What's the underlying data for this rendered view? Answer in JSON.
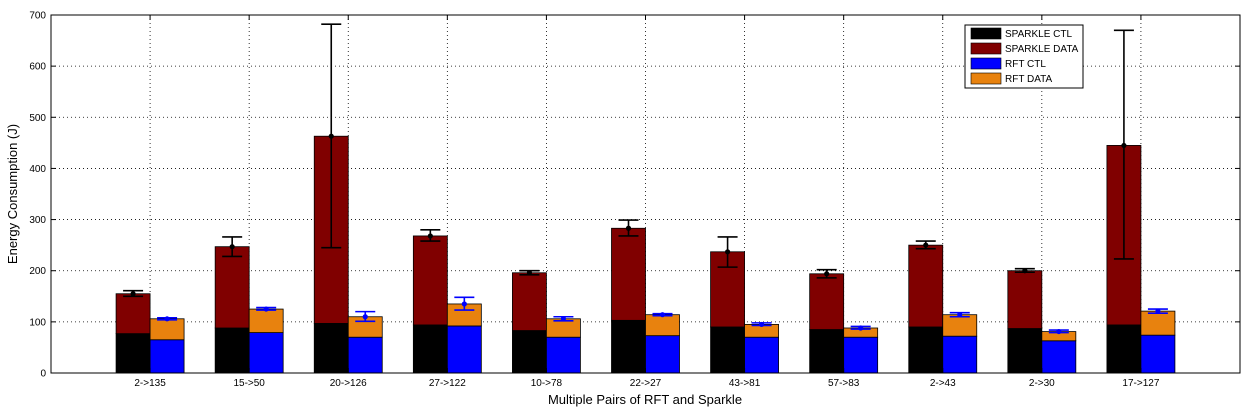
{
  "chart_data": {
    "type": "bar",
    "subtype": "grouped-stacked-with-error-bars",
    "xlabel": "Multiple Pairs of RFT and Sparkle",
    "ylabel": "Energy Consumption (J)",
    "ylim": [
      0,
      700
    ],
    "yticks": [
      0,
      100,
      200,
      300,
      400,
      500,
      600,
      700
    ],
    "grid": true,
    "legend_position": "top-right",
    "categories": [
      "2->135",
      "15->50",
      "20->126",
      "27->122",
      "10->78",
      "22->27",
      "43->81",
      "57->83",
      "2->43",
      "2->30",
      "17->127"
    ],
    "groups": [
      {
        "name": "Sparkle",
        "error_color": "#000000",
        "total": [
          155,
          247,
          463,
          268,
          196,
          283,
          237,
          194,
          250,
          200,
          445
        ],
        "error_low": [
          150,
          228,
          245,
          258,
          192,
          268,
          207,
          186,
          243,
          197,
          223
        ],
        "error_high": [
          161,
          266,
          682,
          280,
          200,
          299,
          266,
          202,
          258,
          204,
          670
        ],
        "series": [
          {
            "name": "SPARKLE CTL",
            "color": "#000000",
            "values": [
              77,
              88,
              97,
              94,
              83,
              103,
              90,
              85,
              90,
              87,
              94
            ]
          },
          {
            "name": "SPARKLE DATA",
            "color": "#800000",
            "values": [
              78,
              159,
              366,
              174,
              113,
              180,
              147,
              109,
              160,
              113,
              351
            ]
          }
        ]
      },
      {
        "name": "RFT",
        "error_color": "#0000ff",
        "total": [
          106,
          125,
          110,
          135,
          106,
          114,
          95,
          88,
          114,
          81,
          121
        ],
        "error_low": [
          104,
          123,
          101,
          123,
          102,
          112,
          93,
          86,
          110,
          79,
          117
        ],
        "error_high": [
          108,
          128,
          120,
          148,
          110,
          116,
          98,
          91,
          118,
          84,
          125
        ],
        "series": [
          {
            "name": "RFT CTL",
            "color": "#0000ff",
            "values": [
              65,
              79,
              70,
              92,
              70,
              73,
              70,
              70,
              72,
              63,
              74
            ]
          },
          {
            "name": "RFT DATA",
            "color": "#e8820e",
            "values": [
              41,
              46,
              40,
              43,
              36,
              41,
              25,
              18,
              42,
              18,
              47
            ]
          }
        ]
      }
    ]
  }
}
